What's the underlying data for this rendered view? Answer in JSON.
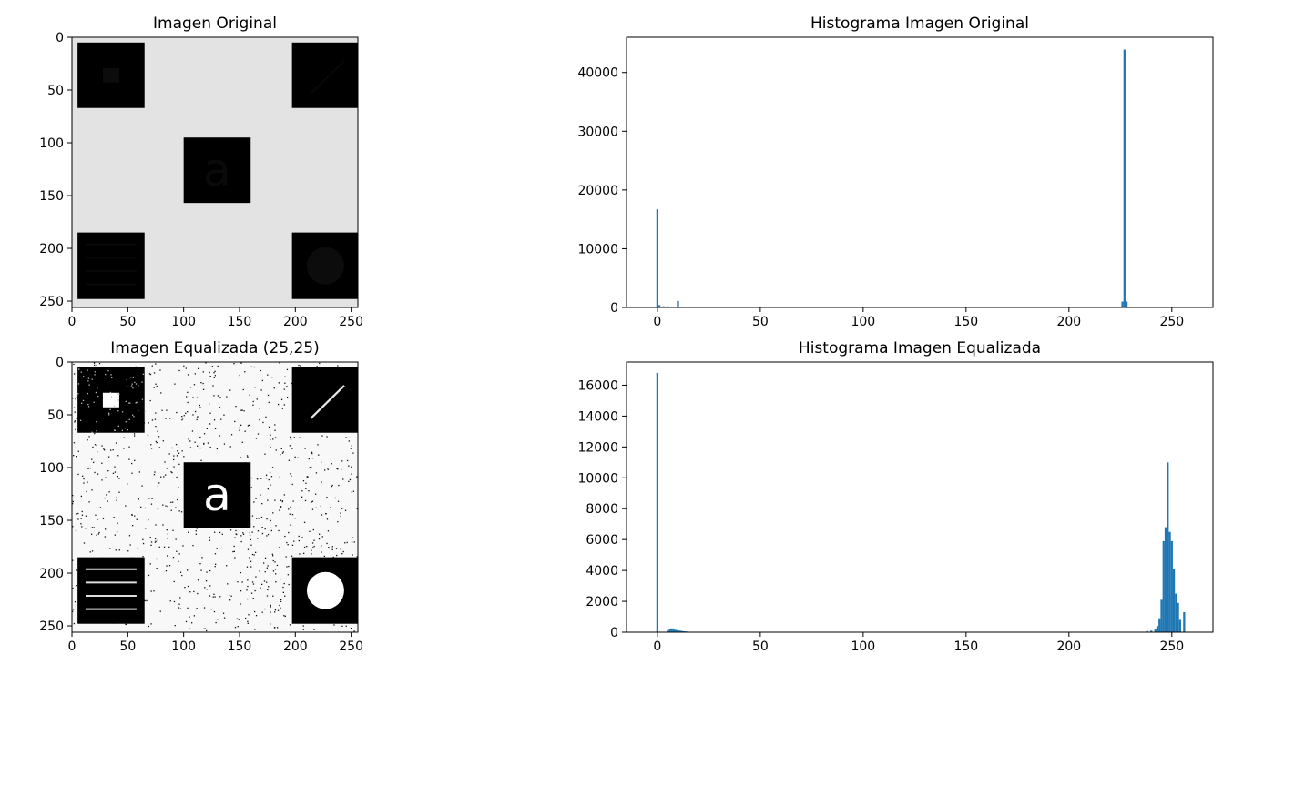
{
  "chart_data": [
    {
      "type": "image",
      "title": "Imagen Original",
      "xlim": [
        0,
        256
      ],
      "ylim": [
        256,
        0
      ],
      "xticks": [
        0,
        50,
        100,
        150,
        200,
        250
      ],
      "yticks": [
        0,
        50,
        100,
        150,
        200,
        250
      ],
      "background_level": 227,
      "squares": [
        {
          "x": [
            5,
            65
          ],
          "y": [
            5,
            67
          ],
          "level": 0,
          "feature": "small square",
          "feature_level": 12
        },
        {
          "x": [
            197,
            257
          ],
          "y": [
            5,
            67
          ],
          "level": 0,
          "feature": "diagonal line",
          "feature_level": 8
        },
        {
          "x": [
            100,
            160
          ],
          "y": [
            95,
            157
          ],
          "level": 0,
          "feature": "letter a",
          "feature_level": 10
        },
        {
          "x": [
            5,
            65
          ],
          "y": [
            185,
            248
          ],
          "level": 0,
          "feature": "horizontal lines",
          "feature_level": 8
        },
        {
          "x": [
            197,
            257
          ],
          "y": [
            185,
            248
          ],
          "level": 0,
          "feature": "circle",
          "feature_level": 12
        }
      ],
      "letter": "a"
    },
    {
      "type": "bar",
      "title": "Histograma Imagen Original",
      "xlim": [
        -15,
        270
      ],
      "ylim": [
        0,
        46000
      ],
      "xticks": [
        0,
        50,
        100,
        150,
        200,
        250
      ],
      "yticks": [
        0,
        10000,
        20000,
        30000,
        40000
      ],
      "color": "#1f77b4",
      "x": [
        0,
        1,
        3,
        5,
        7,
        10,
        226,
        227,
        228
      ],
      "values": [
        16700,
        400,
        200,
        200,
        150,
        1100,
        1000,
        43900,
        1000
      ]
    },
    {
      "type": "image",
      "title": "Imagen Equalizada (25,25)",
      "xlim": [
        0,
        256
      ],
      "ylim": [
        256,
        0
      ],
      "xticks": [
        0,
        50,
        100,
        150,
        200,
        250
      ],
      "yticks": [
        0,
        50,
        100,
        150,
        200,
        250
      ],
      "background_level": 248,
      "speckle": true,
      "squares": [
        {
          "x": [
            5,
            65
          ],
          "y": [
            5,
            67
          ],
          "level": 0,
          "feature": "small square",
          "feature_level": 255
        },
        {
          "x": [
            197,
            257
          ],
          "y": [
            5,
            67
          ],
          "level": 0,
          "feature": "diagonal line",
          "feature_level": 230
        },
        {
          "x": [
            100,
            160
          ],
          "y": [
            95,
            157
          ],
          "level": 0,
          "feature": "letter a",
          "feature_level": 255
        },
        {
          "x": [
            5,
            65
          ],
          "y": [
            185,
            248
          ],
          "level": 0,
          "feature": "horizontal lines",
          "feature_level": 220
        },
        {
          "x": [
            197,
            257
          ],
          "y": [
            185,
            248
          ],
          "level": 0,
          "feature": "circle",
          "feature_level": 255
        }
      ],
      "letter": "a"
    },
    {
      "type": "bar",
      "title": "Histograma Imagen Equalizada",
      "xlim": [
        -15,
        270
      ],
      "ylim": [
        0,
        17500
      ],
      "xticks": [
        0,
        50,
        100,
        150,
        200,
        250
      ],
      "yticks": [
        0,
        2000,
        4000,
        6000,
        8000,
        10000,
        12000,
        14000,
        16000
      ],
      "color": "#1f77b4",
      "x": [
        0,
        5,
        6,
        7,
        8,
        9,
        10,
        11,
        12,
        13,
        14,
        238,
        240,
        242,
        243,
        244,
        245,
        246,
        247,
        248,
        249,
        250,
        251,
        252,
        253,
        254,
        256
      ],
      "values": [
        16800,
        100,
        200,
        250,
        200,
        150,
        120,
        100,
        80,
        60,
        50,
        80,
        100,
        200,
        400,
        900,
        2100,
        5900,
        6800,
        11000,
        6500,
        5900,
        4100,
        2500,
        1900,
        800,
        1300
      ]
    }
  ]
}
